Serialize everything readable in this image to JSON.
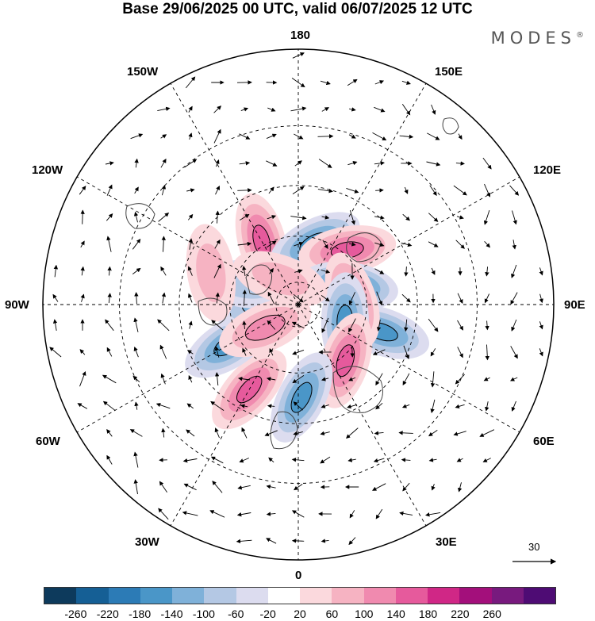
{
  "title": "Base 29/06/2025 00 UTC, valid 06/07/2025 12 UTC",
  "brand": "MODES",
  "brand_mark": "®",
  "longitude_labels": {
    "top": "180",
    "bottom": "0",
    "left": "90W",
    "right": "90E",
    "upper_left_1": "150W",
    "upper_left_2": "120W",
    "upper_right_1": "150E",
    "upper_right_2": "120E",
    "lower_left_1": "60W",
    "lower_left_2": "30W",
    "lower_right_1": "60E",
    "lower_right_2": "30E"
  },
  "reference_vector": "30",
  "colorbar": {
    "colors": [
      "#0d3a5c",
      "#155f95",
      "#2c7bb6",
      "#4a96c8",
      "#7fb1d9",
      "#b4c8e4",
      "#dcdcef",
      "#ffffff",
      "#fbd9dd",
      "#f6b3c2",
      "#f08aaf",
      "#e65a9c",
      "#d02786",
      "#a30f7b",
      "#781a7e",
      "#4e0c74"
    ],
    "tick_labels": [
      "-260",
      "-220",
      "-180",
      "-140",
      "-100",
      "-60",
      "-20",
      "20",
      "60",
      "100",
      "140",
      "180",
      "220",
      "260"
    ]
  },
  "anomaly_centers": [
    {
      "lon": -150,
      "lat": 58,
      "sign": "positive",
      "strength": 0.7
    },
    {
      "lon": 165,
      "lat": 62,
      "sign": "negative",
      "strength": 0.75
    },
    {
      "lon": 138,
      "lat": 58,
      "sign": "positive",
      "strength": 0.75
    },
    {
      "lon": 110,
      "lat": 66,
      "sign": "negative",
      "strength": 0.9
    },
    {
      "lon": 72,
      "lat": 52,
      "sign": "negative",
      "strength": 0.8
    },
    {
      "lon": 95,
      "lat": 66,
      "sign": "positive",
      "strength": 0.7
    },
    {
      "lon": 70,
      "lat": 68,
      "sign": "negative",
      "strength": 0.7
    },
    {
      "lon": 40,
      "lat": 58,
      "sign": "positive",
      "strength": 0.75
    },
    {
      "lon": 2,
      "lat": 50,
      "sign": "negative",
      "strength": 0.85
    },
    {
      "lon": -30,
      "lat": 48,
      "sign": "positive",
      "strength": 0.85
    },
    {
      "lon": -60,
      "lat": 55,
      "sign": "negative",
      "strength": 0.7
    },
    {
      "lon": -95,
      "lat": 74,
      "sign": "negative",
      "strength": 0.6
    },
    {
      "lon": -112,
      "lat": 66,
      "sign": "negative",
      "strength": 0.45
    },
    {
      "lon": -145,
      "lat": 76,
      "sign": "positive",
      "strength": 0.45
    },
    {
      "lon": -110,
      "lat": 50,
      "sign": "positive",
      "strength": 0.35
    },
    {
      "lon": -55,
      "lat": 72,
      "sign": "positive",
      "strength": 0.5
    }
  ]
}
